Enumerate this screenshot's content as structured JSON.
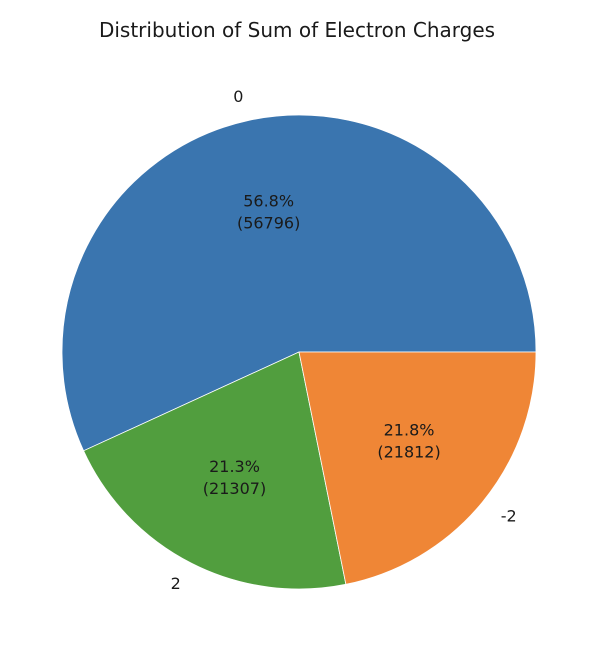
{
  "chart_data": {
    "type": "pie",
    "title": "Distribution of Sum of Electron Charges",
    "categories": [
      "0",
      "2",
      "-2"
    ],
    "values": [
      56796,
      21307,
      21812
    ],
    "percent_labels": [
      "56.8%",
      "21.3%",
      "21.8%"
    ],
    "count_labels": [
      "(56796)",
      "(21307)",
      "(21812)"
    ],
    "colors": [
      "#3a75af",
      "#519e3e",
      "#ef8636"
    ],
    "start_angle_deg": 0,
    "direction": "counterclockwise",
    "legend": "none"
  }
}
